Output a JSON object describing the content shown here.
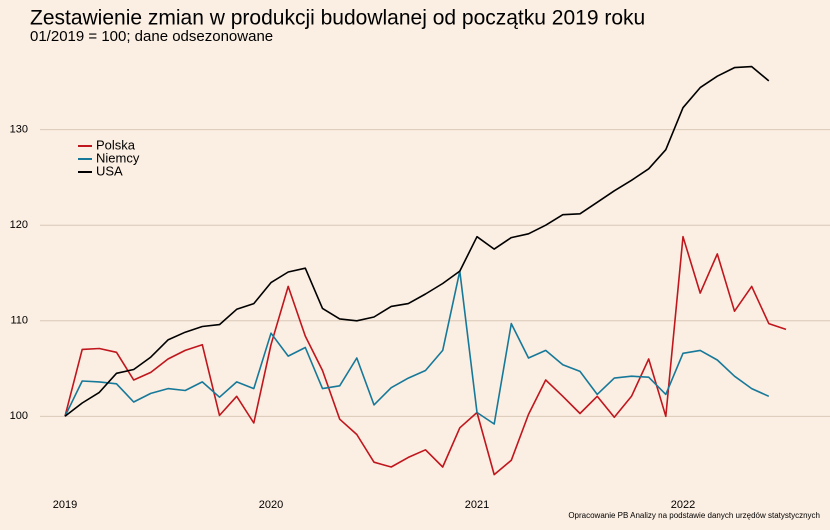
{
  "chart_data": {
    "type": "line",
    "title": "Zestawienie zmian w produkcji budowlanej od początku 2019 roku",
    "subtitle": "01/2019 = 100; dane odsezonowane",
    "source": "Opracowanie PB Analizy na podstawie danych urzędów statystycznych",
    "categories": [
      "2019",
      null,
      null,
      null,
      null,
      null,
      null,
      null,
      null,
      null,
      null,
      null,
      "2020",
      null,
      null,
      null,
      null,
      null,
      null,
      null,
      null,
      null,
      null,
      null,
      "2021",
      null,
      null,
      null,
      null,
      null,
      null,
      null,
      null,
      null,
      null,
      null,
      "2022",
      null,
      null,
      null,
      null,
      null,
      null
    ],
    "series": [
      {
        "name": "Polska",
        "color": "#c0161d",
        "values": [
          100,
          107,
          107.1,
          106.7,
          103.8,
          104.6,
          106,
          106.9,
          107.5,
          100.1,
          102.1,
          99.3,
          107.5,
          113.6,
          108.4,
          104.8,
          99.7,
          98.1,
          95.2,
          94.7,
          95.7,
          96.5,
          94.7,
          98.8,
          100.4,
          93.9,
          95.4,
          100.2,
          103.8,
          102.1,
          100.3,
          102.1,
          99.9,
          102.1,
          106,
          100,
          118.8,
          112.9,
          117,
          111,
          113.6,
          109.7,
          109.1
        ]
      },
      {
        "name": "Niemcy",
        "color": "#17799a",
        "values": [
          100,
          103.7,
          103.6,
          103.4,
          101.5,
          102.4,
          102.9,
          102.7,
          103.6,
          102,
          103.6,
          102.9,
          108.7,
          106.3,
          107.2,
          102.9,
          103.2,
          106.1,
          101.2,
          103,
          104,
          104.8,
          106.9,
          115.2,
          100.4,
          99.2,
          109.7,
          106.1,
          106.9,
          105.4,
          104.7,
          102.3,
          104,
          104.2,
          104.1,
          102.3,
          106.6,
          106.9,
          105.9,
          104.2,
          102.9,
          102.1,
          null
        ]
      },
      {
        "name": "USA",
        "color": "#000000",
        "values": [
          100,
          101.4,
          102.5,
          104.5,
          104.9,
          106.2,
          108,
          108.8,
          109.4,
          109.6,
          111.2,
          111.8,
          114,
          115.1,
          115.5,
          111.3,
          110.2,
          110,
          110.4,
          111.5,
          111.8,
          112.8,
          113.9,
          115.2,
          118.8,
          117.5,
          118.7,
          119.1,
          120,
          121.1,
          121.2,
          122.4,
          123.6,
          124.7,
          125.9,
          127.9,
          132.3,
          134.4,
          135.6,
          136.5,
          136.6,
          135.1,
          null
        ]
      }
    ],
    "ylim": [
      92.5,
      137.5
    ],
    "yticks": [
      100,
      110,
      120,
      130
    ],
    "grid": true,
    "legend": "upper-left"
  }
}
